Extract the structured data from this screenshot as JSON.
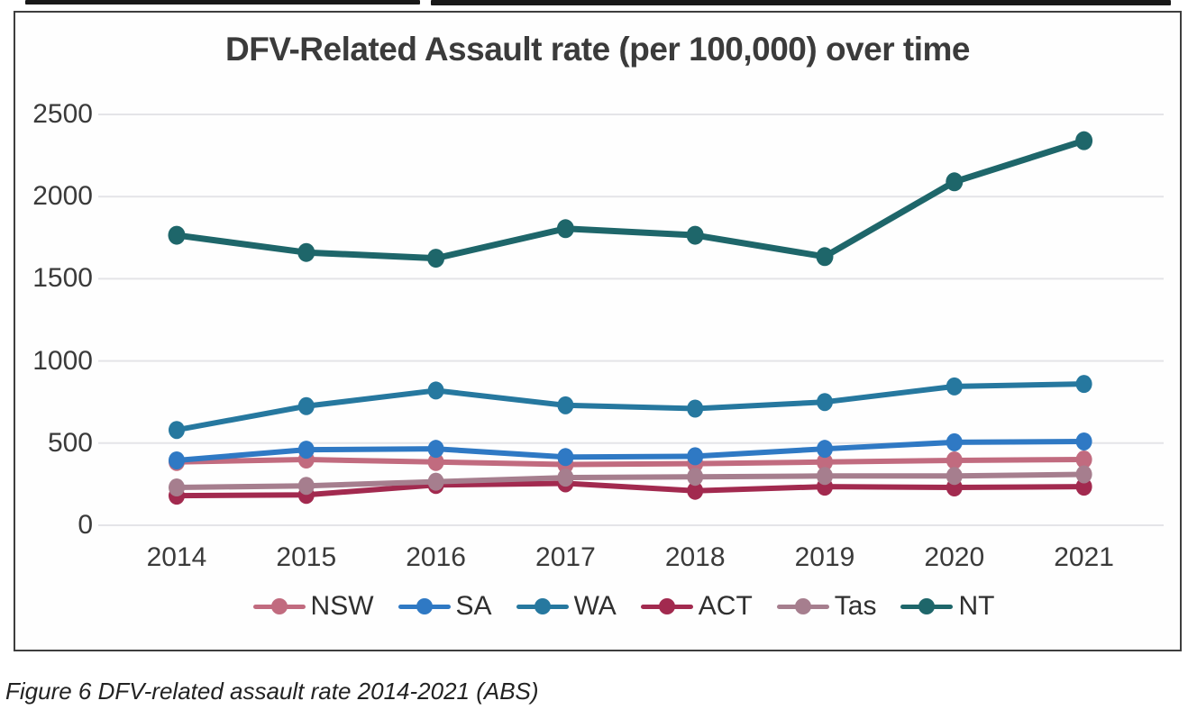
{
  "page": {
    "caption": "Figure 6 DFV-related assault rate 2014-2021 (ABS)"
  },
  "chart_data": {
    "type": "line",
    "title": "DFV-Related Assault rate (per 100,000) over time",
    "categories": [
      "2014",
      "2015",
      "2016",
      "2017",
      "2018",
      "2019",
      "2020",
      "2021"
    ],
    "series": [
      {
        "name": "NSW",
        "color": "#c16b7f",
        "values": [
          385,
          400,
          385,
          370,
          375,
          385,
          395,
          400
        ]
      },
      {
        "name": "SA",
        "color": "#2f79c4",
        "values": [
          395,
          460,
          465,
          415,
          420,
          465,
          505,
          510
        ]
      },
      {
        "name": "WA",
        "color": "#26789f",
        "values": [
          580,
          725,
          820,
          730,
          710,
          750,
          845,
          860
        ]
      },
      {
        "name": "ACT",
        "color": "#a22a4f",
        "values": [
          180,
          185,
          245,
          255,
          210,
          235,
          230,
          235
        ]
      },
      {
        "name": "Tas",
        "color": "#a67e8e",
        "values": [
          230,
          240,
          265,
          290,
          295,
          300,
          300,
          310
        ]
      },
      {
        "name": "NT",
        "color": "#1e666a",
        "values": [
          1765,
          1660,
          1625,
          1805,
          1765,
          1635,
          2090,
          2340
        ]
      }
    ],
    "xlabel": "",
    "ylabel": "",
    "ylim": [
      0,
      2500
    ],
    "yticks": [
      0,
      500,
      1000,
      1500,
      2000,
      2500
    ],
    "grid": true,
    "legend_position": "bottom",
    "marker": "circle"
  }
}
